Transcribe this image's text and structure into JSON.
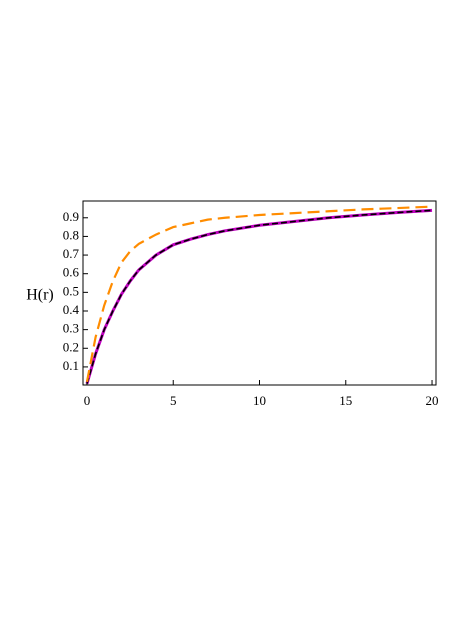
{
  "chart_data": {
    "type": "line",
    "y_label": "H(r)",
    "x": [
      0,
      0.5,
      1,
      1.5,
      2,
      2.5,
      3,
      4,
      5,
      6,
      7,
      8,
      10,
      12,
      14,
      16,
      18,
      20
    ],
    "series": [
      {
        "color": "#c000c0",
        "style": "solid",
        "values": [
          0.01,
          0.17,
          0.3,
          0.4,
          0.49,
          0.56,
          0.62,
          0.7,
          0.755,
          0.785,
          0.81,
          0.83,
          0.86,
          0.88,
          0.9,
          0.915,
          0.928,
          0.94
        ]
      },
      {
        "color": "#000000",
        "style": "dashed",
        "values": [
          0.01,
          0.17,
          0.3,
          0.4,
          0.49,
          0.56,
          0.62,
          0.7,
          0.755,
          0.785,
          0.81,
          0.83,
          0.86,
          0.88,
          0.9,
          0.915,
          0.928,
          0.94
        ]
      },
      {
        "color": "#ff8c00",
        "style": "longdash",
        "values": [
          0.02,
          0.26,
          0.43,
          0.56,
          0.66,
          0.72,
          0.76,
          0.81,
          0.85,
          0.87,
          0.89,
          0.9,
          0.915,
          0.925,
          0.935,
          0.945,
          0.952,
          0.96
        ]
      }
    ],
    "xlim": [
      -0.23,
      20.23
    ],
    "xticks": [
      0,
      5,
      10,
      15,
      20
    ],
    "ylim": [
      0.003,
      0.99
    ],
    "yticks": [
      0.1,
      0.2,
      0.3,
      0.4,
      0.5,
      0.6,
      0.7,
      0.8,
      0.9
    ]
  }
}
